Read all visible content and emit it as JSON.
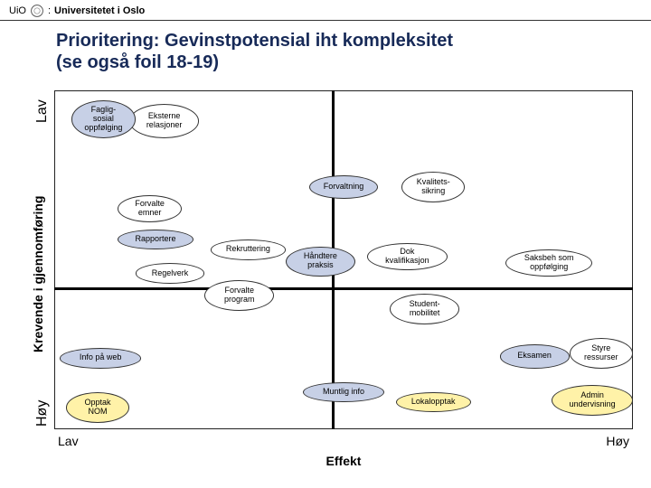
{
  "header": {
    "prefix": "UiO",
    "colon": ":",
    "university": "Universitetet i Oslo"
  },
  "title_line1": "Prioritering: Gevinstpotensial iht kompleksitet",
  "title_line2": "(se også foil 18-19)",
  "axes": {
    "y_label": "Krevende i gjennomføring",
    "y_low": "Lav",
    "y_high": "Høy",
    "x_label": "Effekt",
    "x_low": "Lav",
    "x_high": "Høy",
    "cross_x_pct": 48,
    "cross_y_pct": 58,
    "frame_color": "#222222",
    "axis_color": "#000000"
  },
  "palette": {
    "blue_dark": "#6b7aa3",
    "blue_light": "#c7d0e6",
    "yellow": "#fff2a8",
    "white": "#ffffff"
  },
  "bubbles": [
    {
      "id": "faglig-sosial",
      "label": "Faglig-\nsosial\noppfølging",
      "x": 3,
      "y": 3,
      "w": 11,
      "h": 11,
      "fill": "blue_light",
      "z": 2
    },
    {
      "id": "eksterne-rel",
      "label": "Eksterne\nrelasjoner",
      "x": 13,
      "y": 4,
      "w": 12,
      "h": 10,
      "fill": "white",
      "z": 1
    },
    {
      "id": "forvaltning",
      "label": "Forvaltning",
      "x": 44,
      "y": 25,
      "w": 12,
      "h": 7,
      "fill": "blue_light",
      "z": 2
    },
    {
      "id": "kvalitetssikring",
      "label": "Kvalitets-\nsikring",
      "x": 60,
      "y": 24,
      "w": 11,
      "h": 9,
      "fill": "white",
      "z": 1
    },
    {
      "id": "forvalte-emner",
      "label": "Forvalte\nemner",
      "x": 11,
      "y": 31,
      "w": 11,
      "h": 8,
      "fill": "white",
      "z": 1
    },
    {
      "id": "rapportere",
      "label": "Rapportere",
      "x": 11,
      "y": 41,
      "w": 13,
      "h": 6,
      "fill": "blue_light",
      "z": 2
    },
    {
      "id": "rekruttering",
      "label": "Rekruttering",
      "x": 27,
      "y": 44,
      "w": 13,
      "h": 6,
      "fill": "white",
      "z": 1
    },
    {
      "id": "handtere-praksis",
      "label": "Håndtere\npraksis",
      "x": 40,
      "y": 46,
      "w": 12,
      "h": 9,
      "fill": "blue_light",
      "z": 2
    },
    {
      "id": "regelverk",
      "label": "Regelverk",
      "x": 14,
      "y": 51,
      "w": 12,
      "h": 6,
      "fill": "white",
      "z": 1
    },
    {
      "id": "dok-kvalifikasjon",
      "label": "Dok\nkvalifikasjon",
      "x": 54,
      "y": 45,
      "w": 14,
      "h": 8,
      "fill": "white",
      "z": 1
    },
    {
      "id": "saksbeh-oppf",
      "label": "Saksbeh som\noppfølging",
      "x": 78,
      "y": 47,
      "w": 15,
      "h": 8,
      "fill": "white",
      "z": 1
    },
    {
      "id": "forvalte-program",
      "label": "Forvalte\nprogram",
      "x": 26,
      "y": 56,
      "w": 12,
      "h": 9,
      "fill": "white",
      "z": 1
    },
    {
      "id": "studentmobilitet",
      "label": "Student-\nmobilitet",
      "x": 58,
      "y": 60,
      "w": 12,
      "h": 9,
      "fill": "white",
      "z": 1
    },
    {
      "id": "info-pa-web",
      "label": "Info på web",
      "x": 1,
      "y": 76,
      "w": 14,
      "h": 6,
      "fill": "blue_light",
      "z": 2
    },
    {
      "id": "eksamen",
      "label": "Eksamen",
      "x": 77,
      "y": 75,
      "w": 12,
      "h": 7,
      "fill": "blue_light",
      "z": 2
    },
    {
      "id": "styre-ressurser",
      "label": "Styre\nressurser",
      "x": 89,
      "y": 73,
      "w": 11,
      "h": 9,
      "fill": "white",
      "z": 1
    },
    {
      "id": "muntlig-info",
      "label": "Muntlig info",
      "x": 43,
      "y": 86,
      "w": 14,
      "h": 6,
      "fill": "blue_light",
      "z": 2
    },
    {
      "id": "opptak-nom",
      "label": "Opptak\nNOM",
      "x": 2,
      "y": 89,
      "w": 11,
      "h": 9,
      "fill": "yellow",
      "z": 2
    },
    {
      "id": "lokalopptak",
      "label": "Lokalopptak",
      "x": 59,
      "y": 89,
      "w": 13,
      "h": 6,
      "fill": "yellow",
      "z": 2
    },
    {
      "id": "admin-underv",
      "label": "Admin\nundervisning",
      "x": 86,
      "y": 87,
      "w": 14,
      "h": 9,
      "fill": "yellow",
      "z": 2
    }
  ]
}
